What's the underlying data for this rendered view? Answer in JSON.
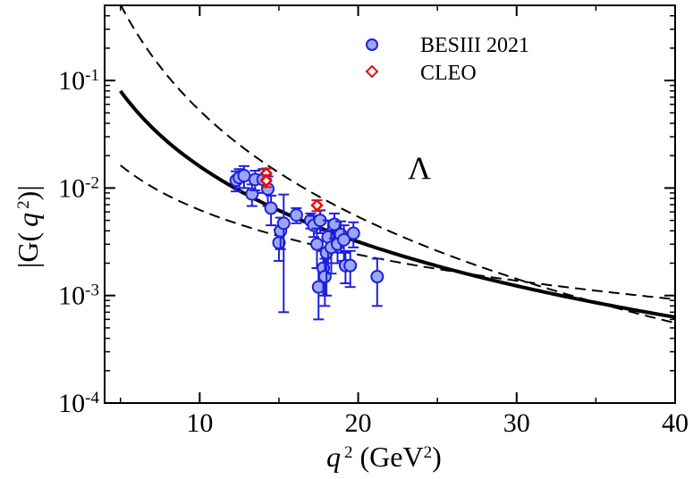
{
  "chart_data": {
    "type": "scatter",
    "xlim": [
      4,
      40
    ],
    "ylim": [
      0.0001,
      0.5
    ],
    "yscale": "log",
    "x_ticks": [
      "10",
      "20",
      "30",
      "40"
    ],
    "x_tick_values": [
      10,
      20,
      30,
      40
    ],
    "y_ticks": [
      {
        "value": 0.1,
        "base": "10",
        "exp": "-1"
      },
      {
        "value": 0.01,
        "base": "10",
        "exp": "-2"
      },
      {
        "value": 0.001,
        "base": "10",
        "exp": "-3"
      },
      {
        "value": 0.0001,
        "base": "10",
        "exp": "-4"
      }
    ],
    "xlabel": {
      "var": "q",
      "exp": "2",
      "unit_open": " (GeV",
      "unit_exp": "2",
      "unit_close": ")"
    },
    "ylabel": {
      "open": "|G(",
      "var": "q",
      "exp": "2",
      "close": ")|"
    },
    "annotation": "Λ",
    "colors": {
      "besiii": "#1f1fdd",
      "besiii_fill": "#9aa8f0",
      "cleo": "#e01010",
      "curve": "#000000"
    },
    "series": [
      {
        "name": "BESIII 2021",
        "marker": "circle",
        "points": [
          {
            "x": 12.3,
            "y": 0.0118,
            "err": 0.0025
          },
          {
            "x": 12.5,
            "y": 0.0125,
            "err": 0.0025
          },
          {
            "x": 12.8,
            "y": 0.013,
            "err": 0.003
          },
          {
            "x": 13.3,
            "y": 0.0088,
            "err": 0.002
          },
          {
            "x": 13.5,
            "y": 0.012,
            "err": 0.0025
          },
          {
            "x": 14.0,
            "y": 0.012,
            "err": 0.003
          },
          {
            "x": 14.3,
            "y": 0.0098,
            "err": 0.003
          },
          {
            "x": 14.5,
            "y": 0.0065,
            "err": 0.002
          },
          {
            "x": 15.0,
            "y": 0.0031,
            "err": 0.001
          },
          {
            "x": 15.1,
            "y": 0.004,
            "err": 0.0013
          },
          {
            "x": 15.3,
            "y": 0.0047,
            "err": 0.004
          },
          {
            "x": 16.1,
            "y": 0.0056,
            "err": 0.0009
          },
          {
            "x": 17.0,
            "y": 0.005,
            "err": 0.0008
          },
          {
            "x": 17.2,
            "y": 0.0045,
            "err": 0.001
          },
          {
            "x": 17.4,
            "y": 0.003,
            "err": 0.0012
          },
          {
            "x": 17.5,
            "y": 0.0012,
            "err": 0.0006
          },
          {
            "x": 17.6,
            "y": 0.005,
            "err": 0.0012
          },
          {
            "x": 17.8,
            "y": 0.0018,
            "err": 0.0008
          },
          {
            "x": 17.9,
            "y": 0.0015,
            "err": 0.0007
          },
          {
            "x": 18.0,
            "y": 0.0025,
            "err": 0.0015
          },
          {
            "x": 18.1,
            "y": 0.0035,
            "err": 0.0015
          },
          {
            "x": 18.3,
            "y": 0.0028,
            "err": 0.0012
          },
          {
            "x": 18.5,
            "y": 0.0046,
            "err": 0.0012
          },
          {
            "x": 18.7,
            "y": 0.003,
            "err": 0.001
          },
          {
            "x": 18.9,
            "y": 0.0037,
            "err": 0.0012
          },
          {
            "x": 19.1,
            "y": 0.0033,
            "err": 0.0012
          },
          {
            "x": 19.2,
            "y": 0.0019,
            "err": 0.0006
          },
          {
            "x": 19.5,
            "y": 0.0019,
            "err": 0.0007
          },
          {
            "x": 19.7,
            "y": 0.0038,
            "err": 0.001
          },
          {
            "x": 21.2,
            "y": 0.0015,
            "err": 0.0007
          }
        ]
      },
      {
        "name": "CLEO",
        "marker": "diamond",
        "points": [
          {
            "x": 14.2,
            "y": 0.0137,
            "err": 0.0015
          },
          {
            "x": 14.2,
            "y": 0.0117,
            "err": 0.0015
          },
          {
            "x": 17.4,
            "y": 0.0069,
            "err": 0.0008
          }
        ]
      }
    ],
    "curves": [
      {
        "name": "central",
        "style": "solid",
        "A": 3.4,
        "n": 2.33
      },
      {
        "name": "upper",
        "style": "dashed",
        "A": 100,
        "n": 3.28
      },
      {
        "name": "lower",
        "style": "dashed",
        "A": 0.15,
        "n": 1.38
      }
    ],
    "curve_domain": [
      5,
      40
    ]
  }
}
